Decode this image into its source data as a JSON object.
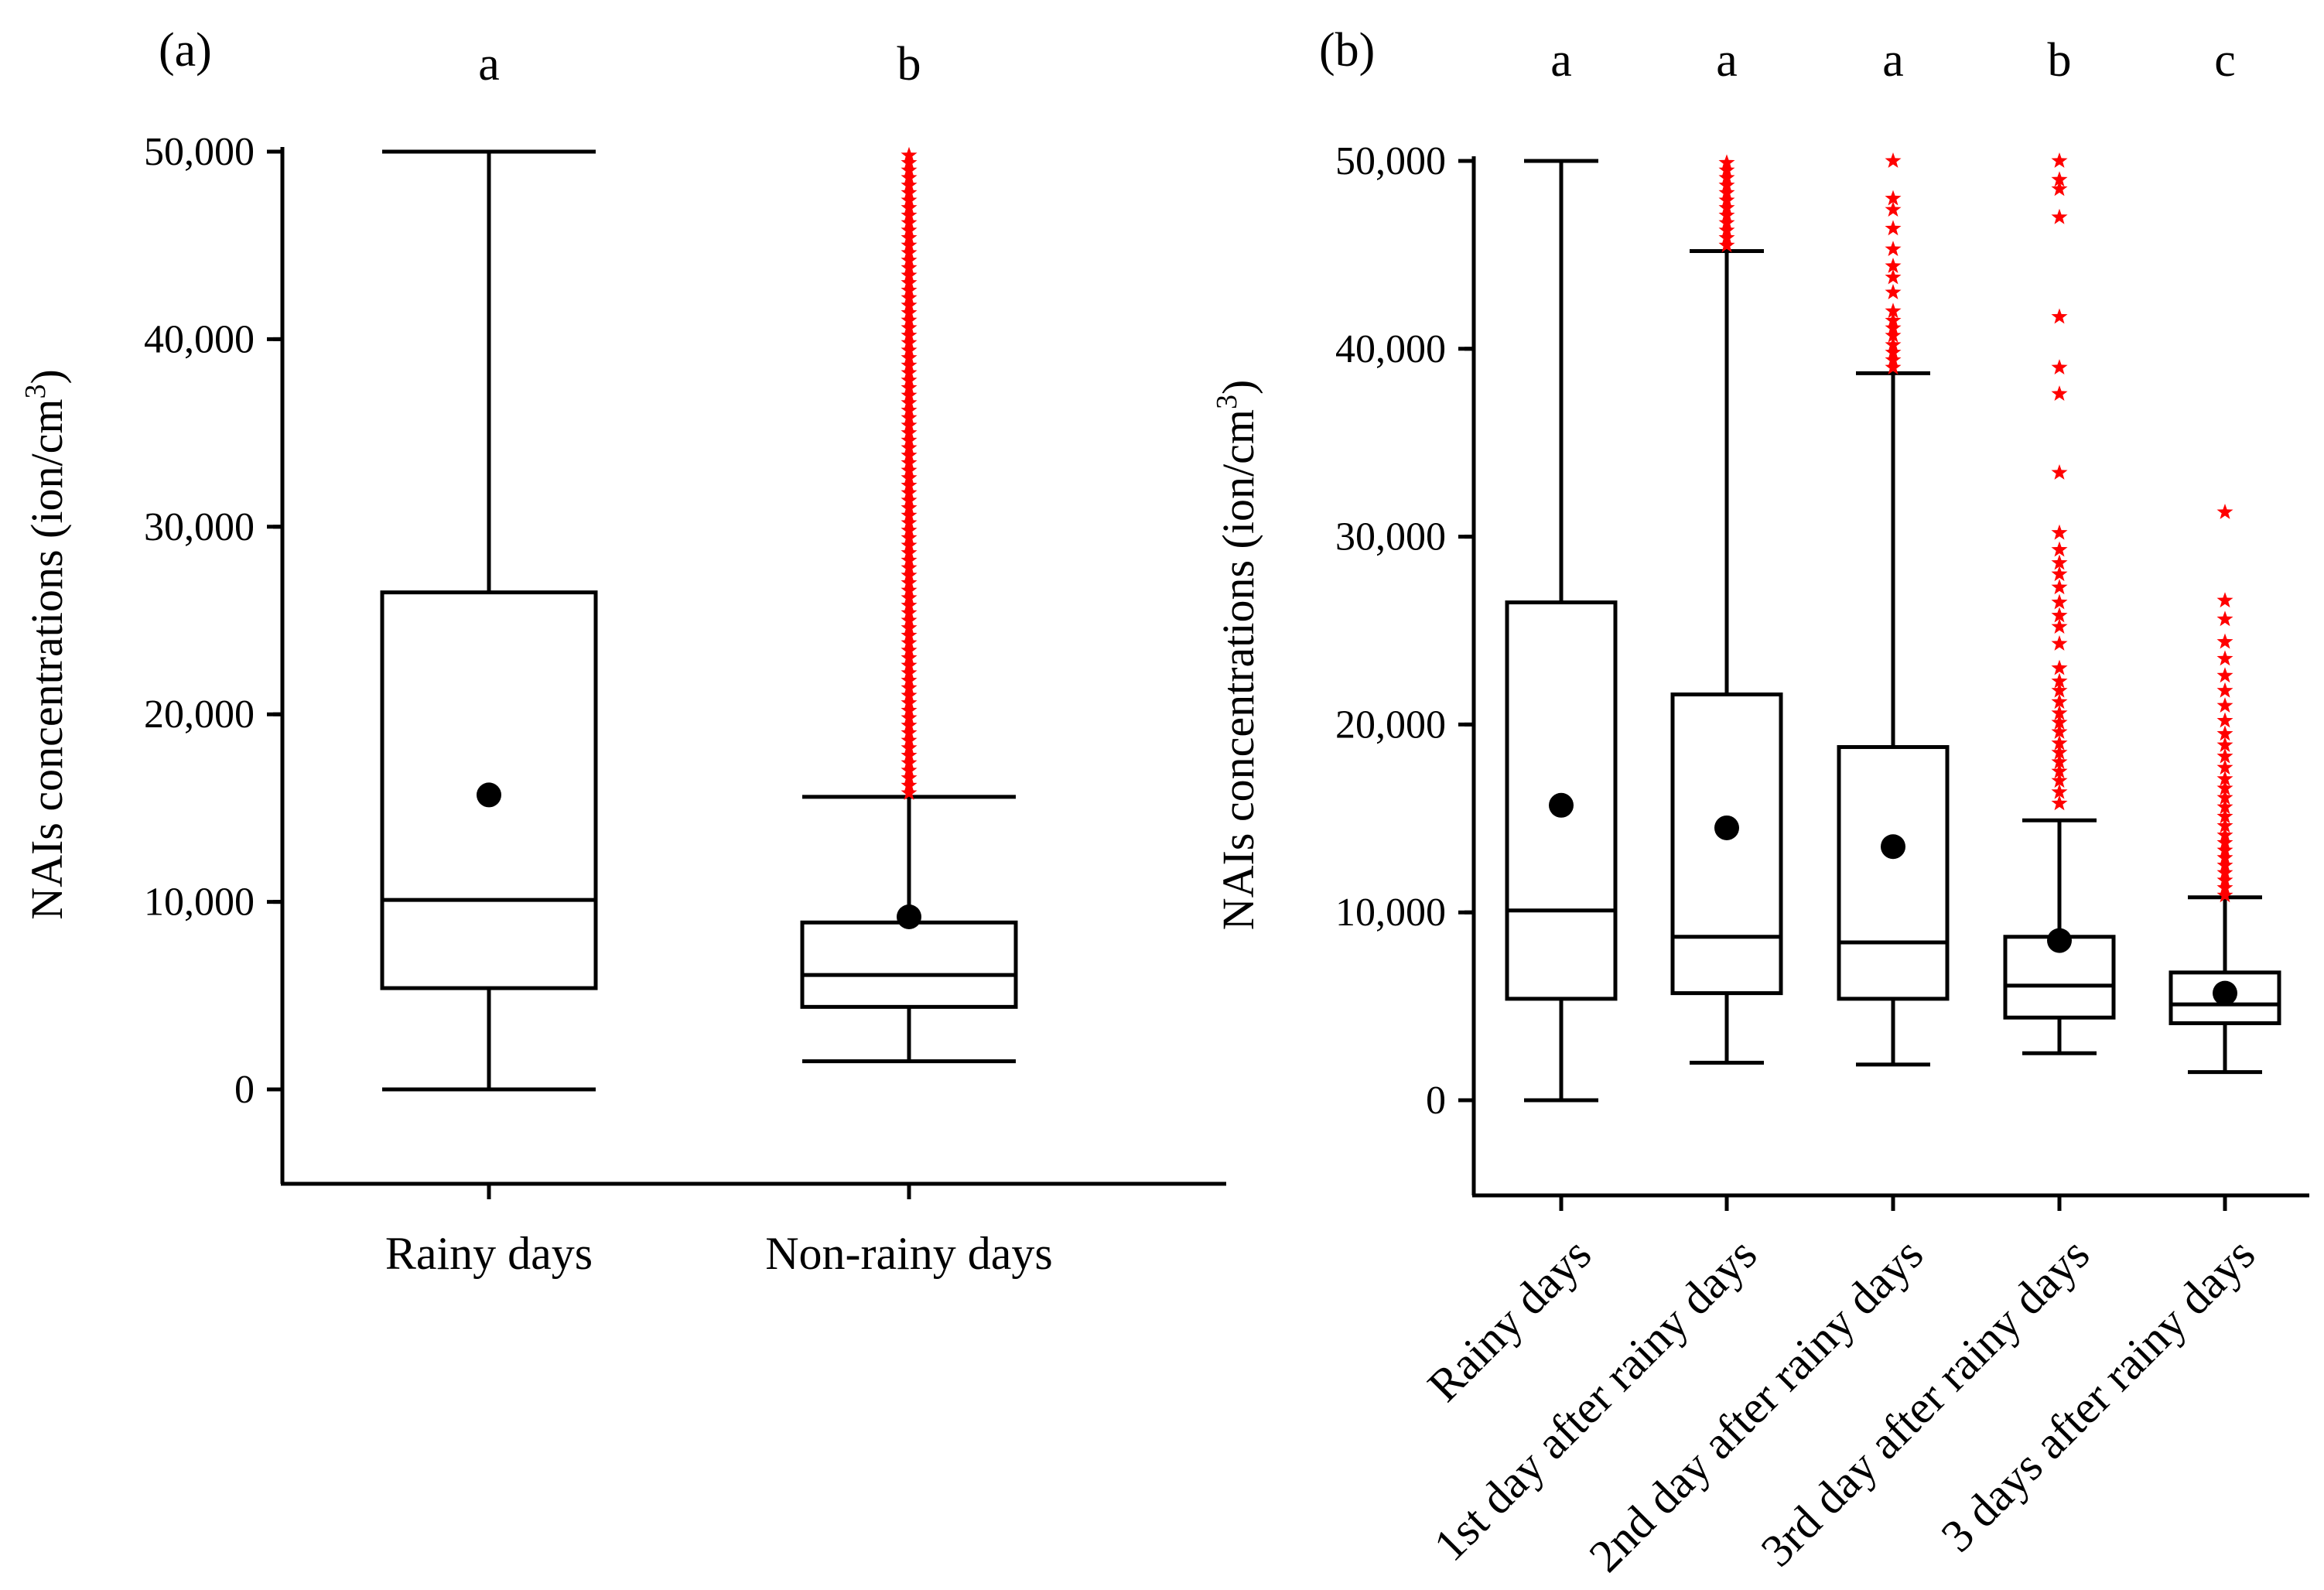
{
  "chart_data": [
    {
      "type": "box",
      "panel_label": "(a)",
      "ylabel": "NAIs concentrations (ion/cm",
      "ylabel_sup": "3",
      "ylabel_close": ")",
      "ylim": [
        -5000,
        50000
      ],
      "yticks": [
        0,
        10000,
        20000,
        30000,
        40000,
        50000
      ],
      "ytick_labels": [
        "0",
        "10,000",
        "20,000",
        "30,000",
        "40,000",
        "50,000"
      ],
      "categories": [
        "Rainy days",
        "Non-rainy days"
      ],
      "significance": [
        "a",
        "b"
      ],
      "boxes": [
        {
          "min": 0,
          "q1": 5400,
          "median": 10100,
          "q3": 26500,
          "max": 50000,
          "mean": 15700,
          "outliers": []
        },
        {
          "min": 1500,
          "q1": 4400,
          "median": 6100,
          "q3": 8900,
          "max": 15600,
          "mean": 9200,
          "outliers": [
            15800,
            16200,
            16600,
            17000,
            17400,
            17800,
            18200,
            18600,
            19000,
            19400,
            19800,
            20200,
            20600,
            21000,
            21400,
            21800,
            22200,
            22600,
            23000,
            23400,
            23800,
            24200,
            24600,
            25000,
            25400,
            25800,
            26200,
            26600,
            27000,
            27400,
            27800,
            28200,
            28600,
            29000,
            29400,
            29800,
            30200,
            30600,
            31000,
            31400,
            31800,
            32200,
            32600,
            33000,
            33400,
            33800,
            34200,
            34600,
            35000,
            35400,
            35800,
            36200,
            36600,
            37000,
            37400,
            37800,
            38200,
            38600,
            39000,
            39400,
            39800,
            40200,
            40600,
            41000,
            41400,
            41800,
            42200,
            42600,
            43000,
            43400,
            43800,
            44200,
            44600,
            45000,
            45400,
            45800,
            46200,
            46600,
            47000,
            47400,
            47800,
            48200,
            48600,
            49000,
            49400,
            49800
          ]
        }
      ]
    },
    {
      "type": "box",
      "panel_label": "(b)",
      "ylabel": "NAIs concentrations (ion/cm",
      "ylabel_sup": "3",
      "ylabel_close": ")",
      "ylim": [
        -5000,
        50000
      ],
      "yticks": [
        0,
        10000,
        20000,
        30000,
        40000,
        50000
      ],
      "ytick_labels": [
        "0",
        "10,000",
        "20,000",
        "30,000",
        "40,000",
        "50,000"
      ],
      "categories": [
        "Rainy days",
        "1st day after rainy days",
        "2nd day after rainy days",
        "3rd day after rainy days",
        "3 days after rainy days"
      ],
      "significance": [
        "a",
        "a",
        "a",
        "b",
        "c"
      ],
      "boxes": [
        {
          "min": 0,
          "q1": 5400,
          "median": 10100,
          "q3": 26500,
          "max": 50000,
          "mean": 15700,
          "outliers": []
        },
        {
          "min": 2000,
          "q1": 5700,
          "median": 8700,
          "q3": 21600,
          "max": 45200,
          "mean": 14500,
          "outliers": [
            45500,
            45900,
            46300,
            46700,
            47100,
            47500,
            47900,
            48300,
            48700,
            49100,
            49500,
            49900
          ]
        },
        {
          "min": 1900,
          "q1": 5400,
          "median": 8400,
          "q3": 18800,
          "max": 38700,
          "mean": 13500,
          "outliers": [
            39000,
            39400,
            39800,
            40200,
            40700,
            41100,
            41500,
            42000,
            43000,
            43800,
            44400,
            45300,
            46400,
            47400,
            48000,
            50000
          ]
        },
        {
          "min": 2500,
          "q1": 4400,
          "median": 6100,
          "q3": 8700,
          "max": 14900,
          "mean": 8500,
          "outliers": [
            15800,
            16400,
            17000,
            17500,
            18000,
            18500,
            19000,
            19600,
            20100,
            20600,
            21200,
            21800,
            22300,
            23000,
            24300,
            25200,
            25800,
            26500,
            27300,
            28000,
            28600,
            29300,
            30200,
            33400,
            37600,
            39000,
            41700,
            47000,
            48500,
            49000,
            50000
          ]
        },
        {
          "min": 1500,
          "q1": 4100,
          "median": 5100,
          "q3": 6800,
          "max": 10800,
          "mean": 5700,
          "outliers": [
            10900,
            11300,
            11700,
            12100,
            12500,
            12900,
            13300,
            13700,
            14100,
            14600,
            15100,
            15600,
            16100,
            16600,
            17100,
            17700,
            18300,
            18900,
            19500,
            20200,
            21000,
            21800,
            22600,
            23500,
            24400,
            25600,
            26600,
            31300
          ]
        }
      ]
    }
  ]
}
